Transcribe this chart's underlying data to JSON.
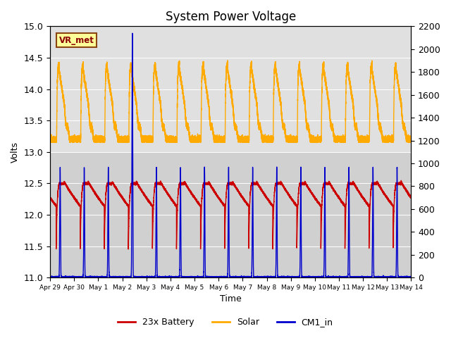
{
  "title": "System Power Voltage",
  "xlabel": "Time",
  "ylabel": "Volts",
  "ylim_left": [
    11.0,
    15.0
  ],
  "ylim_right": [
    0,
    2200
  ],
  "yticks_left": [
    11.0,
    11.5,
    12.0,
    12.5,
    13.0,
    13.5,
    14.0,
    14.5,
    15.0
  ],
  "yticks_right": [
    0,
    200,
    400,
    600,
    800,
    1000,
    1200,
    1400,
    1600,
    1800,
    2000,
    2200
  ],
  "tick_labels": [
    "Apr 29",
    "Apr 30",
    "May 1",
    "May 2",
    "May 3",
    "May 4",
    "May 5",
    "May 6",
    "May 7",
    "May 8",
    "May 9",
    "May 10",
    "May 11",
    "May 12",
    "May 13",
    "May 14"
  ],
  "background_color": "#ffffff",
  "plot_bg_color_upper": "#e0e0e0",
  "plot_bg_color_lower": "#d0d0d0",
  "battery_color": "#cc0000",
  "solar_color": "#ffaa00",
  "cm1_color": "#0000cc",
  "annotation_text": "VR_met",
  "title_fontsize": 12,
  "axis_fontsize": 9,
  "legend_fontsize": 9,
  "grid_color": "#bbbbbb",
  "line_width": 1.0,
  "num_days": 15
}
